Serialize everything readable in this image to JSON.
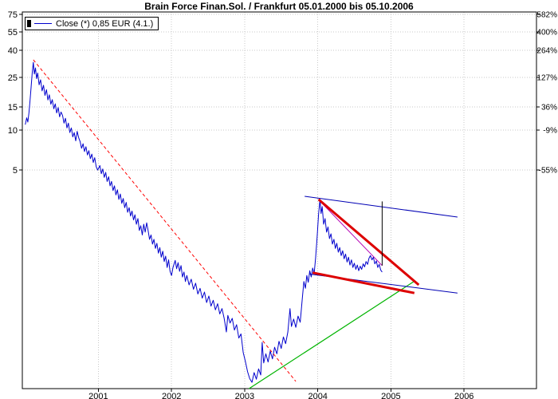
{
  "chart_data": {
    "type": "line",
    "title": "Brain Force Finan.Sol. / Frankfurt 05.01.2000 bis 05.10.2006",
    "legend": "Close (*) 0,85 EUR (4.1.)",
    "grid": true,
    "grid_color": "#c9c9c9",
    "x_axis": {
      "label": "",
      "range": [
        1999.96,
        2006.99
      ],
      "ticks": [
        2001,
        2002,
        2003,
        2004,
        2005,
        2006
      ]
    },
    "y_axis": {
      "label": "EUR",
      "scale": "log",
      "range": [
        0.112,
        78
      ],
      "ticks": [
        {
          "price": 75,
          "pct": "582%"
        },
        {
          "price": 55,
          "pct": "400%"
        },
        {
          "price": 40,
          "pct": "264%"
        },
        {
          "price": 25,
          "pct": "127%"
        },
        {
          "price": 15,
          "pct": "36%"
        },
        {
          "price": 10,
          "pct": "-9%"
        },
        {
          "price": 5,
          "pct": "-55%"
        }
      ]
    },
    "series": [
      {
        "name": "Close",
        "color": "#0000cd",
        "points": [
          [
            2000.0,
            11.0
          ],
          [
            2000.02,
            12.4
          ],
          [
            2000.035,
            11.5
          ],
          [
            2000.05,
            13.5
          ],
          [
            2000.065,
            16.5
          ],
          [
            2000.08,
            21.0
          ],
          [
            2000.095,
            27.0
          ],
          [
            2000.11,
            32.5
          ],
          [
            2000.125,
            26.5
          ],
          [
            2000.14,
            29.5
          ],
          [
            2000.155,
            24.5
          ],
          [
            2000.17,
            27.0
          ],
          [
            2000.19,
            22.0
          ],
          [
            2000.21,
            24.0
          ],
          [
            2000.23,
            19.8
          ],
          [
            2000.25,
            21.8
          ],
          [
            2000.27,
            18.3
          ],
          [
            2000.29,
            20.2
          ],
          [
            2000.31,
            16.9
          ],
          [
            2000.33,
            18.5
          ],
          [
            2000.35,
            15.7
          ],
          [
            2000.37,
            17.0
          ],
          [
            2000.39,
            14.5
          ],
          [
            2000.41,
            15.8
          ],
          [
            2000.43,
            13.5
          ],
          [
            2000.45,
            14.8
          ],
          [
            2000.47,
            12.6
          ],
          [
            2000.49,
            13.7
          ],
          [
            2000.51,
            12.9
          ],
          [
            2000.53,
            11.3
          ],
          [
            2000.55,
            12.3
          ],
          [
            2000.57,
            10.4
          ],
          [
            2000.59,
            11.3
          ],
          [
            2000.61,
            9.6
          ],
          [
            2000.63,
            10.4
          ],
          [
            2000.65,
            8.9
          ],
          [
            2000.67,
            9.6
          ],
          [
            2000.69,
            8.3
          ],
          [
            2000.71,
            9.8
          ],
          [
            2000.73,
            8.8
          ],
          [
            2000.75,
            8.2
          ],
          [
            2000.77,
            7.3
          ],
          [
            2000.79,
            7.9
          ],
          [
            2000.81,
            6.9
          ],
          [
            2000.83,
            7.5
          ],
          [
            2000.85,
            6.5
          ],
          [
            2000.87,
            7.0
          ],
          [
            2000.89,
            6.1
          ],
          [
            2000.91,
            6.6
          ],
          [
            2000.93,
            5.7
          ],
          [
            2000.95,
            6.2
          ],
          [
            2000.97,
            5.3
          ],
          [
            2000.99,
            5.0
          ],
          [
            2001.02,
            5.4
          ],
          [
            2001.04,
            4.7
          ],
          [
            2001.06,
            5.1
          ],
          [
            2001.08,
            4.4
          ],
          [
            2001.1,
            4.8
          ],
          [
            2001.12,
            4.1
          ],
          [
            2001.14,
            4.45
          ],
          [
            2001.16,
            3.8
          ],
          [
            2001.18,
            4.1
          ],
          [
            2001.2,
            3.5
          ],
          [
            2001.22,
            3.8
          ],
          [
            2001.24,
            3.25
          ],
          [
            2001.26,
            3.55
          ],
          [
            2001.28,
            3.0
          ],
          [
            2001.3,
            3.3
          ],
          [
            2001.32,
            2.8
          ],
          [
            2001.34,
            3.05
          ],
          [
            2001.36,
            2.6
          ],
          [
            2001.38,
            2.85
          ],
          [
            2001.4,
            2.4
          ],
          [
            2001.42,
            2.6
          ],
          [
            2001.44,
            2.25
          ],
          [
            2001.46,
            2.45
          ],
          [
            2001.48,
            2.1
          ],
          [
            2001.5,
            2.3
          ],
          [
            2001.52,
            1.95
          ],
          [
            2001.54,
            2.15
          ],
          [
            2001.56,
            1.75
          ],
          [
            2001.58,
            1.9
          ],
          [
            2001.6,
            1.62
          ],
          [
            2001.62,
            1.95
          ],
          [
            2001.64,
            1.7
          ],
          [
            2001.66,
            2.0
          ],
          [
            2001.68,
            1.75
          ],
          [
            2001.7,
            1.5
          ],
          [
            2001.72,
            1.62
          ],
          [
            2001.74,
            1.38
          ],
          [
            2001.76,
            1.5
          ],
          [
            2001.78,
            1.28
          ],
          [
            2001.8,
            1.4
          ],
          [
            2001.82,
            1.18
          ],
          [
            2001.84,
            1.3
          ],
          [
            2001.86,
            1.1
          ],
          [
            2001.88,
            1.22
          ],
          [
            2001.9,
            1.02
          ],
          [
            2001.92,
            1.12
          ],
          [
            2001.94,
            0.92
          ],
          [
            2001.96,
            1.05
          ],
          [
            2001.98,
            0.86
          ],
          [
            2002.0,
            0.8
          ],
          [
            2002.02,
            0.92
          ],
          [
            2002.05,
            1.04
          ],
          [
            2002.07,
            0.9
          ],
          [
            2002.09,
            1.0
          ],
          [
            2002.11,
            0.86
          ],
          [
            2002.13,
            0.95
          ],
          [
            2002.15,
            0.78
          ],
          [
            2002.17,
            0.85
          ],
          [
            2002.19,
            0.72
          ],
          [
            2002.21,
            0.8
          ],
          [
            2002.24,
            0.68
          ],
          [
            2002.27,
            0.75
          ],
          [
            2002.3,
            0.63
          ],
          [
            2002.33,
            0.7
          ],
          [
            2002.36,
            0.58
          ],
          [
            2002.39,
            0.64
          ],
          [
            2002.42,
            0.54
          ],
          [
            2002.45,
            0.6
          ],
          [
            2002.48,
            0.5
          ],
          [
            2002.51,
            0.56
          ],
          [
            2002.54,
            0.47
          ],
          [
            2002.57,
            0.52
          ],
          [
            2002.6,
            0.44
          ],
          [
            2002.63,
            0.49
          ],
          [
            2002.66,
            0.41
          ],
          [
            2002.69,
            0.45
          ],
          [
            2002.72,
            0.38
          ],
          [
            2002.75,
            0.3
          ],
          [
            2002.77,
            0.4
          ],
          [
            2002.8,
            0.35
          ],
          [
            2002.83,
            0.38
          ],
          [
            2002.86,
            0.31
          ],
          [
            2002.89,
            0.34
          ],
          [
            2002.92,
            0.27
          ],
          [
            2002.95,
            0.29
          ],
          [
            2002.98,
            0.21
          ],
          [
            2003.01,
            0.18
          ],
          [
            2003.04,
            0.15
          ],
          [
            2003.07,
            0.133
          ],
          [
            2003.1,
            0.125
          ],
          [
            2003.13,
            0.148
          ],
          [
            2003.16,
            0.132
          ],
          [
            2003.19,
            0.158
          ],
          [
            2003.22,
            0.142
          ],
          [
            2003.24,
            0.25
          ],
          [
            2003.26,
            0.175
          ],
          [
            2003.29,
            0.205
          ],
          [
            2003.32,
            0.178
          ],
          [
            2003.35,
            0.215
          ],
          [
            2003.38,
            0.188
          ],
          [
            2003.41,
            0.23
          ],
          [
            2003.44,
            0.205
          ],
          [
            2003.47,
            0.255
          ],
          [
            2003.5,
            0.225
          ],
          [
            2003.53,
            0.275
          ],
          [
            2003.56,
            0.245
          ],
          [
            2003.59,
            0.3
          ],
          [
            2003.62,
            0.45
          ],
          [
            2003.64,
            0.33
          ],
          [
            2003.67,
            0.375
          ],
          [
            2003.7,
            0.325
          ],
          [
            2003.73,
            0.395
          ],
          [
            2003.76,
            0.355
          ],
          [
            2003.79,
            0.55
          ],
          [
            2003.81,
            0.72
          ],
          [
            2003.83,
            0.64
          ],
          [
            2003.85,
            0.8
          ],
          [
            2003.87,
            0.71
          ],
          [
            2003.89,
            0.87
          ],
          [
            2003.91,
            0.78
          ],
          [
            2003.93,
            0.91
          ],
          [
            2003.95,
            0.83
          ],
          [
            2003.97,
            1.08
          ],
          [
            2003.99,
            1.55
          ],
          [
            2004.01,
            2.3
          ],
          [
            2004.03,
            3.0
          ],
          [
            2004.045,
            2.35
          ],
          [
            2004.06,
            2.65
          ],
          [
            2004.08,
            1.95
          ],
          [
            2004.1,
            2.15
          ],
          [
            2004.12,
            1.7
          ],
          [
            2004.14,
            1.86
          ],
          [
            2004.16,
            1.52
          ],
          [
            2004.18,
            1.65
          ],
          [
            2004.2,
            1.38
          ],
          [
            2004.22,
            1.5
          ],
          [
            2004.24,
            1.28
          ],
          [
            2004.26,
            1.4
          ],
          [
            2004.28,
            1.2
          ],
          [
            2004.3,
            1.3
          ],
          [
            2004.32,
            1.13
          ],
          [
            2004.34,
            1.23
          ],
          [
            2004.36,
            1.07
          ],
          [
            2004.38,
            1.16
          ],
          [
            2004.4,
            1.01
          ],
          [
            2004.42,
            1.1
          ],
          [
            2004.44,
            0.96
          ],
          [
            2004.46,
            1.05
          ],
          [
            2004.48,
            0.92
          ],
          [
            2004.5,
            0.99
          ],
          [
            2004.52,
            0.89
          ],
          [
            2004.54,
            0.96
          ],
          [
            2004.56,
            0.87
          ],
          [
            2004.58,
            0.94
          ],
          [
            2004.6,
            0.89
          ],
          [
            2004.62,
            0.98
          ],
          [
            2004.64,
            0.93
          ],
          [
            2004.66,
            1.02
          ],
          [
            2004.68,
            0.97
          ],
          [
            2004.7,
            1.08
          ],
          [
            2004.72,
            1.13
          ],
          [
            2004.74,
            1.05
          ],
          [
            2004.76,
            1.1
          ],
          [
            2004.78,
            0.98
          ],
          [
            2004.8,
            1.03
          ],
          [
            2004.82,
            0.92
          ],
          [
            2004.84,
            0.97
          ],
          [
            2004.86,
            0.88
          ],
          [
            2004.88,
            0.85
          ]
        ]
      }
    ],
    "overlays": [
      {
        "name": "downtrend-line-2000-2003",
        "color": "#ff0000",
        "width": 1,
        "dash": "4 3",
        "from": [
          2000.11,
          34.0
        ],
        "to": [
          2003.7,
          0.127
        ]
      },
      {
        "name": "uptrend-line-2003-2005",
        "color": "#00b400",
        "width": 1.2,
        "from": [
          2003.06,
          0.112
        ],
        "to": [
          2005.33,
          0.73
        ]
      },
      {
        "name": "channel-upper-line",
        "color": "#0000b4",
        "width": 1,
        "from": [
          2003.82,
          3.17
        ],
        "to": [
          2005.91,
          2.21
        ]
      },
      {
        "name": "channel-lower-line",
        "color": "#0000b4",
        "width": 1,
        "from": [
          2003.89,
          0.82
        ],
        "to": [
          2005.91,
          0.59
        ]
      },
      {
        "name": "violet-trend-line",
        "color": "#b400b4",
        "width": 1,
        "from": [
          2004.02,
          2.95
        ],
        "to": [
          2004.88,
          0.95
        ]
      },
      {
        "name": "wedge-upper-line",
        "color": "#dd0000",
        "width": 3,
        "from": [
          2004.01,
          3.0
        ],
        "to": [
          2005.38,
          0.68
        ]
      },
      {
        "name": "wedge-lower-line",
        "color": "#dd0000",
        "width": 3,
        "from": [
          2003.93,
          0.84
        ],
        "to": [
          2005.32,
          0.59
        ]
      },
      {
        "name": "vertical-measure-line",
        "color": "#000000",
        "width": 1,
        "from": [
          2004.88,
          2.9
        ],
        "to": [
          2004.88,
          0.95
        ]
      }
    ]
  }
}
